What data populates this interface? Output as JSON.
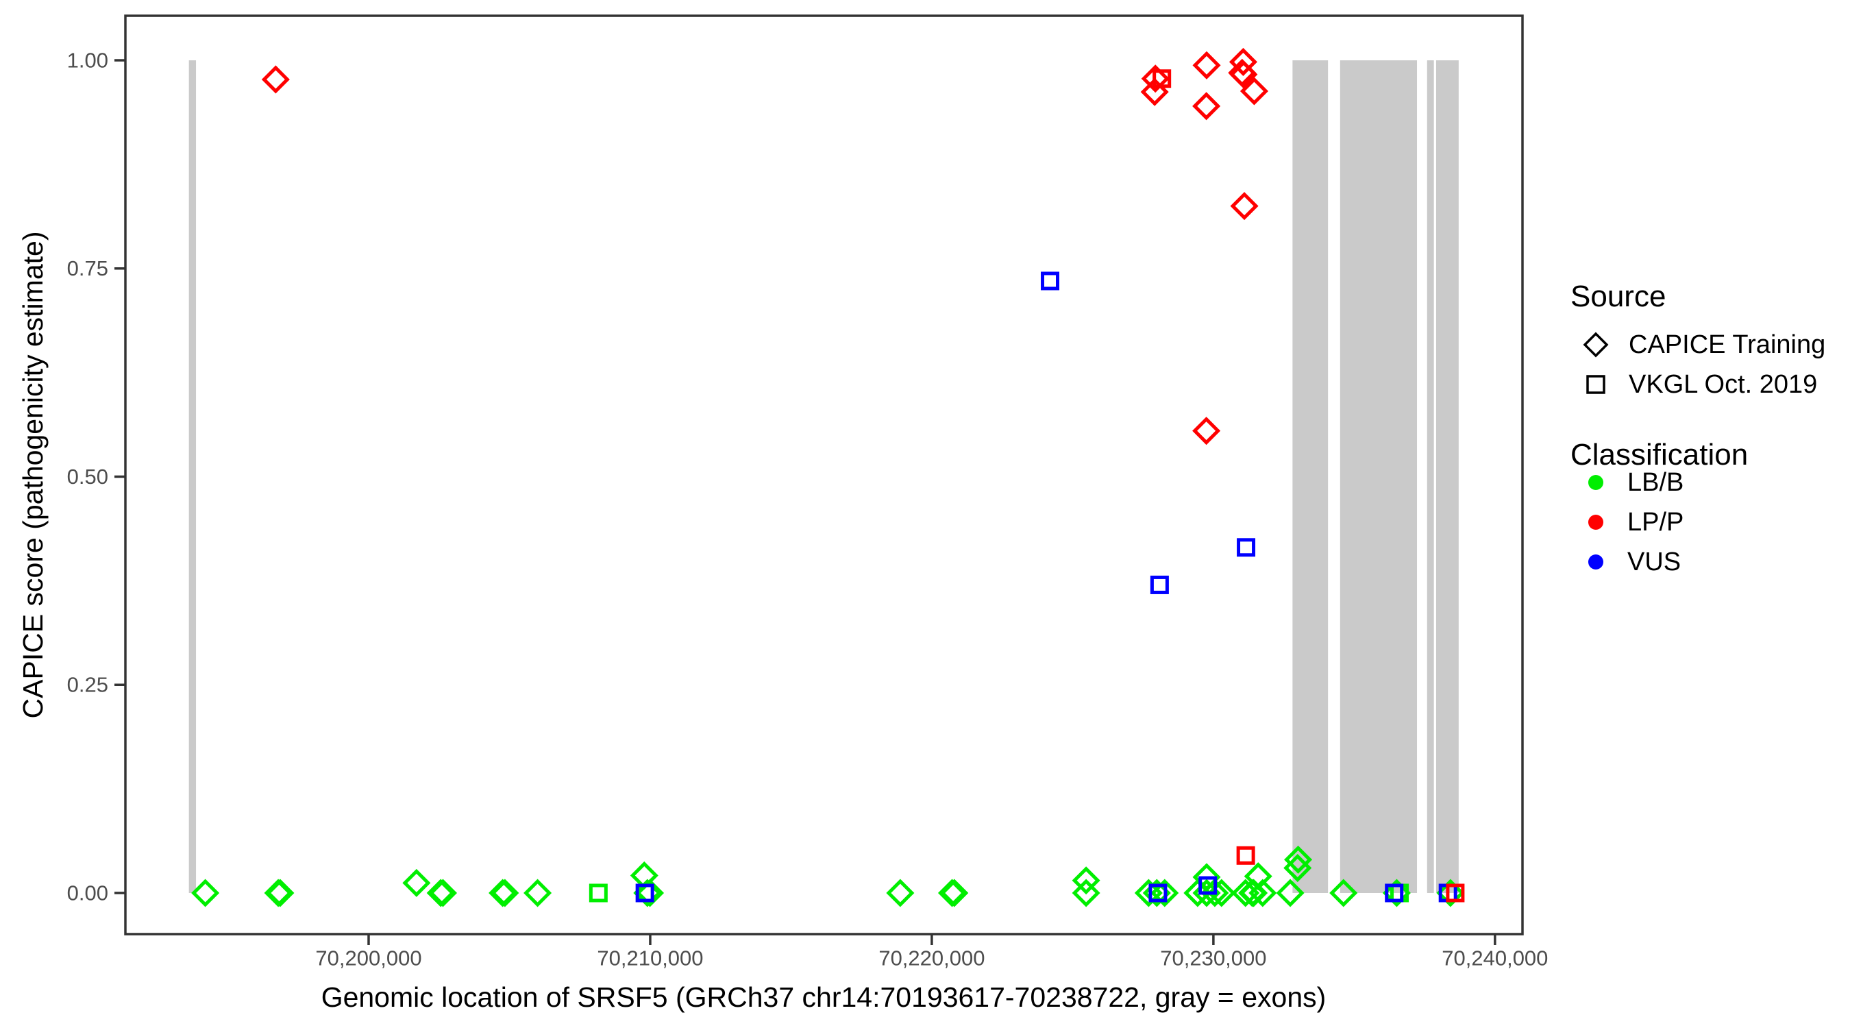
{
  "colors": {
    "LB/B": "#00ee00",
    "LP/P": "#ff0000",
    "VUS": "#0000ff",
    "exon": "#cacaca",
    "panel_border": "#333333",
    "tick_mark": "#333333",
    "tick_text": "#4d4d4d",
    "axis_text": "#000000",
    "legend_symbol": "#000000"
  },
  "legend": {
    "source": {
      "title": "Source",
      "items": [
        {
          "label": "CAPICE Training",
          "shape": "diamond"
        },
        {
          "label": "VKGL Oct. 2019",
          "shape": "square"
        }
      ]
    },
    "classification": {
      "title": "Classification",
      "items": [
        {
          "label": "LB/B",
          "color_key": "LB/B"
        },
        {
          "label": "LP/P",
          "color_key": "LP/P"
        },
        {
          "label": "VUS",
          "color_key": "VUS"
        }
      ]
    }
  },
  "chart_data": {
    "type": "scatter",
    "title": "",
    "xlabel": "Genomic location of SRSF5 (GRCh37 chr14:70193617-70238722, gray = exons)",
    "ylabel": "CAPICE score (pathogenicity estimate)",
    "gene": "SRSF5",
    "gene_range": [
      70193617,
      70238722
    ],
    "x_domain": [
      70191362,
      70240977
    ],
    "y_domain": [
      -0.0494,
      1.0535
    ],
    "grid": false,
    "legend_position": "right",
    "x_ticks": [
      {
        "value": 70200000,
        "label": "70,200,000"
      },
      {
        "value": 70210000,
        "label": "70,210,000"
      },
      {
        "value": 70220000,
        "label": "70,220,000"
      },
      {
        "value": 70230000,
        "label": "70,230,000"
      },
      {
        "value": 70240000,
        "label": "70,240,000"
      }
    ],
    "y_ticks": [
      {
        "value": 0.0,
        "label": "0.00"
      },
      {
        "value": 0.25,
        "label": "0.25"
      },
      {
        "value": 0.5,
        "label": "0.50"
      },
      {
        "value": 0.75,
        "label": "0.75"
      },
      {
        "value": 1.0,
        "label": "1.00"
      }
    ],
    "exons_note": "gray = exons; bars span CAPICE score 0 to 1",
    "exons": [
      [
        70193617,
        70193870
      ],
      [
        70232810,
        70234070
      ],
      [
        70234500,
        70237230
      ],
      [
        70237590,
        70237830
      ],
      [
        70237910,
        70238710
      ]
    ],
    "points": [
      {
        "x": 70194200,
        "y": 0.0,
        "cls": "LB/B",
        "src": "CAPICE"
      },
      {
        "x": 70196790,
        "y": 0.0,
        "cls": "LB/B",
        "src": "CAPICE"
      },
      {
        "x": 70196860,
        "y": 0.0,
        "cls": "LB/B",
        "src": "CAPICE"
      },
      {
        "x": 70201700,
        "y": 0.012,
        "cls": "LB/B",
        "src": "CAPICE"
      },
      {
        "x": 70202560,
        "y": 0.0,
        "cls": "LB/B",
        "src": "CAPICE"
      },
      {
        "x": 70202640,
        "y": 0.0,
        "cls": "LB/B",
        "src": "CAPICE"
      },
      {
        "x": 70204760,
        "y": 0.0,
        "cls": "LB/B",
        "src": "CAPICE"
      },
      {
        "x": 70204840,
        "y": 0.0,
        "cls": "LB/B",
        "src": "CAPICE"
      },
      {
        "x": 70206000,
        "y": 0.0,
        "cls": "LB/B",
        "src": "CAPICE"
      },
      {
        "x": 70208160,
        "y": 0.0,
        "cls": "LB/B",
        "src": "VKGL"
      },
      {
        "x": 70209790,
        "y": 0.021,
        "cls": "LB/B",
        "src": "CAPICE"
      },
      {
        "x": 70209900,
        "y": 0.0,
        "cls": "LB/B",
        "src": "CAPICE"
      },
      {
        "x": 70209990,
        "y": 0.0,
        "cls": "LB/B",
        "src": "CAPICE"
      },
      {
        "x": 70218880,
        "y": 0.0,
        "cls": "LB/B",
        "src": "CAPICE"
      },
      {
        "x": 70220720,
        "y": 0.0,
        "cls": "LB/B",
        "src": "CAPICE"
      },
      {
        "x": 70220800,
        "y": 0.0,
        "cls": "LB/B",
        "src": "CAPICE"
      },
      {
        "x": 70225480,
        "y": 0.015,
        "cls": "LB/B",
        "src": "CAPICE"
      },
      {
        "x": 70225480,
        "y": 0.0,
        "cls": "LB/B",
        "src": "CAPICE"
      },
      {
        "x": 70227700,
        "y": 0.0,
        "cls": "LB/B",
        "src": "CAPICE"
      },
      {
        "x": 70227990,
        "y": 0.0,
        "cls": "LB/B",
        "src": "CAPICE"
      },
      {
        "x": 70228270,
        "y": 0.0,
        "cls": "LB/B",
        "src": "CAPICE"
      },
      {
        "x": 70229440,
        "y": 0.0,
        "cls": "LB/B",
        "src": "CAPICE"
      },
      {
        "x": 70229760,
        "y": 0.019,
        "cls": "LB/B",
        "src": "CAPICE"
      },
      {
        "x": 70229760,
        "y": 0.0,
        "cls": "LB/B",
        "src": "CAPICE"
      },
      {
        "x": 70230050,
        "y": 0.0,
        "cls": "LB/B",
        "src": "CAPICE"
      },
      {
        "x": 70230290,
        "y": 0.0,
        "cls": "LB/B",
        "src": "CAPICE"
      },
      {
        "x": 70231140,
        "y": 0.0,
        "cls": "LB/B",
        "src": "CAPICE"
      },
      {
        "x": 70231380,
        "y": 0.0,
        "cls": "LB/B",
        "src": "CAPICE"
      },
      {
        "x": 70231430,
        "y": 0.0,
        "cls": "LB/B",
        "src": "CAPICE"
      },
      {
        "x": 70231590,
        "y": 0.02,
        "cls": "LB/B",
        "src": "CAPICE"
      },
      {
        "x": 70231750,
        "y": 0.0,
        "cls": "LB/B",
        "src": "CAPICE"
      },
      {
        "x": 70232730,
        "y": 0.0,
        "cls": "LB/B",
        "src": "CAPICE"
      },
      {
        "x": 70232990,
        "y": 0.03,
        "cls": "LB/B",
        "src": "CAPICE"
      },
      {
        "x": 70233010,
        "y": 0.04,
        "cls": "LB/B",
        "src": "CAPICE"
      },
      {
        "x": 70234620,
        "y": 0.0,
        "cls": "LB/B",
        "src": "CAPICE"
      },
      {
        "x": 70236510,
        "y": 0.0,
        "cls": "LB/B",
        "src": "CAPICE"
      },
      {
        "x": 70236610,
        "y": 0.0,
        "cls": "LB/B",
        "src": "VKGL"
      },
      {
        "x": 70238420,
        "y": 0.0,
        "cls": "LB/B",
        "src": "CAPICE"
      },
      {
        "x": 70209810,
        "y": 0.0,
        "cls": "VUS",
        "src": "VKGL"
      },
      {
        "x": 70224200,
        "y": 0.735,
        "cls": "VUS",
        "src": "VKGL"
      },
      {
        "x": 70228030,
        "y": 0.0,
        "cls": "VUS",
        "src": "VKGL"
      },
      {
        "x": 70228090,
        "y": 0.37,
        "cls": "VUS",
        "src": "VKGL"
      },
      {
        "x": 70229800,
        "y": 0.009,
        "cls": "VUS",
        "src": "VKGL"
      },
      {
        "x": 70231160,
        "y": 0.415,
        "cls": "VUS",
        "src": "VKGL"
      },
      {
        "x": 70236420,
        "y": 0.0,
        "cls": "VUS",
        "src": "VKGL"
      },
      {
        "x": 70238330,
        "y": 0.0,
        "cls": "VUS",
        "src": "VKGL"
      },
      {
        "x": 70196700,
        "y": 0.977,
        "cls": "LP/P",
        "src": "CAPICE"
      },
      {
        "x": 70227915,
        "y": 0.962,
        "cls": "LP/P",
        "src": "CAPICE"
      },
      {
        "x": 70227940,
        "y": 0.978,
        "cls": "LP/P",
        "src": "CAPICE"
      },
      {
        "x": 70228170,
        "y": 0.978,
        "cls": "LP/P",
        "src": "VKGL"
      },
      {
        "x": 70229750,
        "y": 0.945,
        "cls": "LP/P",
        "src": "CAPICE"
      },
      {
        "x": 70229760,
        "y": 0.994,
        "cls": "LP/P",
        "src": "CAPICE"
      },
      {
        "x": 70229750,
        "y": 0.555,
        "cls": "LP/P",
        "src": "CAPICE"
      },
      {
        "x": 70231020,
        "y": 0.985,
        "cls": "LP/P",
        "src": "CAPICE"
      },
      {
        "x": 70231060,
        "y": 0.998,
        "cls": "LP/P",
        "src": "CAPICE"
      },
      {
        "x": 70231070,
        "y": 0.983,
        "cls": "LP/P",
        "src": "CAPICE"
      },
      {
        "x": 70231100,
        "y": 0.825,
        "cls": "LP/P",
        "src": "CAPICE"
      },
      {
        "x": 70231450,
        "y": 0.963,
        "cls": "LP/P",
        "src": "CAPICE"
      },
      {
        "x": 70231150,
        "y": 0.045,
        "cls": "LP/P",
        "src": "VKGL"
      },
      {
        "x": 70238590,
        "y": 0.0,
        "cls": "LP/P",
        "src": "VKGL"
      }
    ]
  }
}
